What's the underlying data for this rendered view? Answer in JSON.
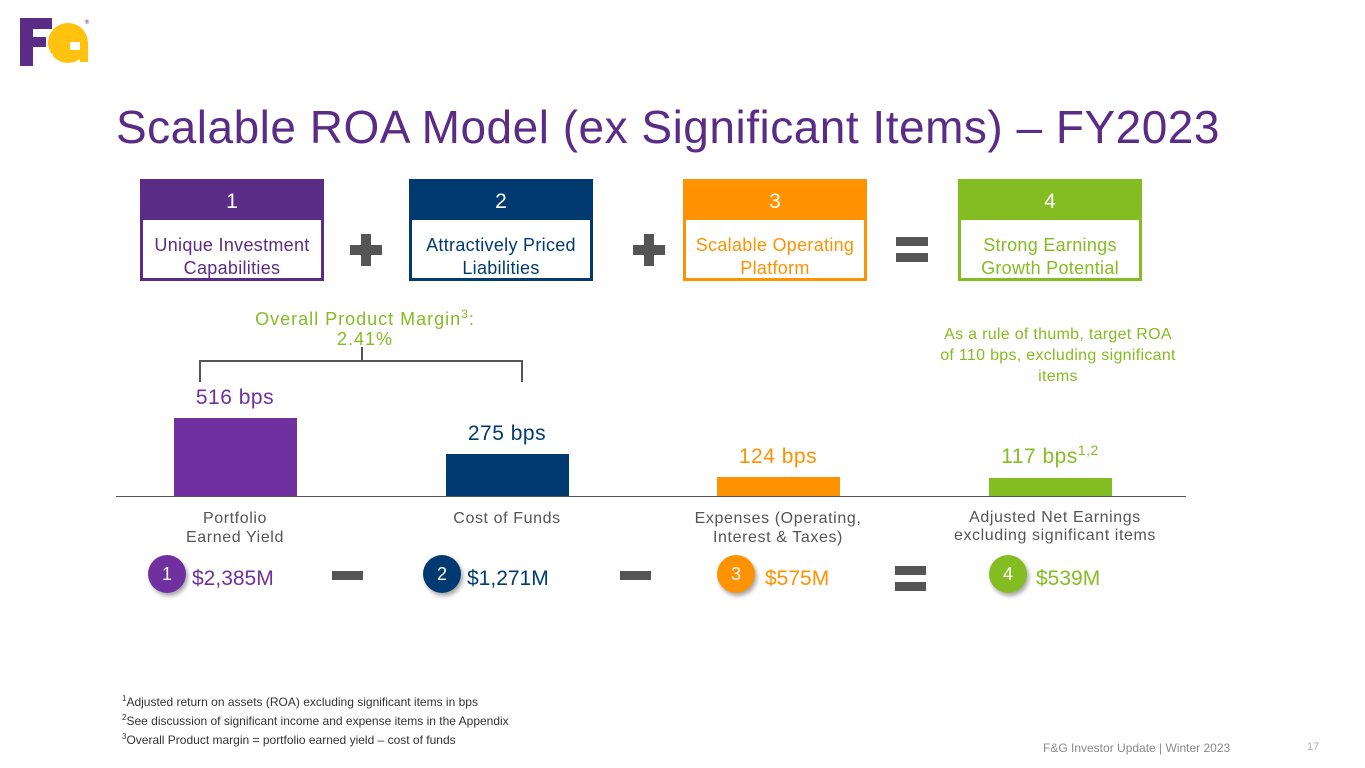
{
  "colors": {
    "purple": "#5b2c86",
    "bar_purple": "#7030a0",
    "navy": "#003a70",
    "orange": "#ff9200",
    "green": "#84bd21",
    "gray_op": "#555555"
  },
  "logo": {
    "text": "F&G",
    "icon": "fg-logo-icon"
  },
  "title": "Scalable ROA Model (ex Significant Items) – FY2023",
  "boxes": [
    {
      "num": "1",
      "label": "Unique Investment Capabilities"
    },
    {
      "num": "2",
      "label": "Attractively Priced Liabilities"
    },
    {
      "num": "3",
      "label": "Scalable Operating Platform"
    },
    {
      "num": "4",
      "label": "Strong Earnings Growth Potential"
    }
  ],
  "operators": {
    "plus": "plus-icon",
    "equals": "equals-icon",
    "minus": "minus-icon"
  },
  "margin": {
    "label": "Overall Product Margin",
    "sup": "3",
    "suffix": ":",
    "value": "2.41%"
  },
  "rule_note": "As a rule of thumb, target ROA of 110 bps, excluding significant items",
  "chart_data": {
    "type": "bar",
    "categories": [
      "Portfolio Earned Yield",
      "Cost of Funds",
      "Expenses (Operating, Interest & Taxes)",
      "Adjusted Net Earnings excluding significant items"
    ],
    "values": [
      516,
      275,
      124,
      117
    ],
    "value_labels": [
      "516 bps",
      "275 bps",
      "124 bps",
      "117 bps"
    ],
    "value_label_sup": [
      "",
      "",
      "",
      "1,2"
    ],
    "ylim": [
      0,
      516
    ],
    "grid": false,
    "legend": "none"
  },
  "amounts": [
    {
      "num": "1",
      "value": "$2,385M"
    },
    {
      "num": "2",
      "value": "$1,271M"
    },
    {
      "num": "3",
      "value": "$575M"
    },
    {
      "num": "4",
      "value": "$539M"
    }
  ],
  "footnotes": [
    {
      "sup": "1",
      "text": "Adjusted return on assets (ROA) excluding significant items in bps"
    },
    {
      "sup": "2",
      "text": "See discussion of significant income and expense items in the Appendix"
    },
    {
      "sup": "3",
      "text": "Overall Product margin = portfolio earned yield – cost of funds"
    }
  ],
  "footer": "F&G Investor Update | Winter 2023",
  "page_number": "17"
}
